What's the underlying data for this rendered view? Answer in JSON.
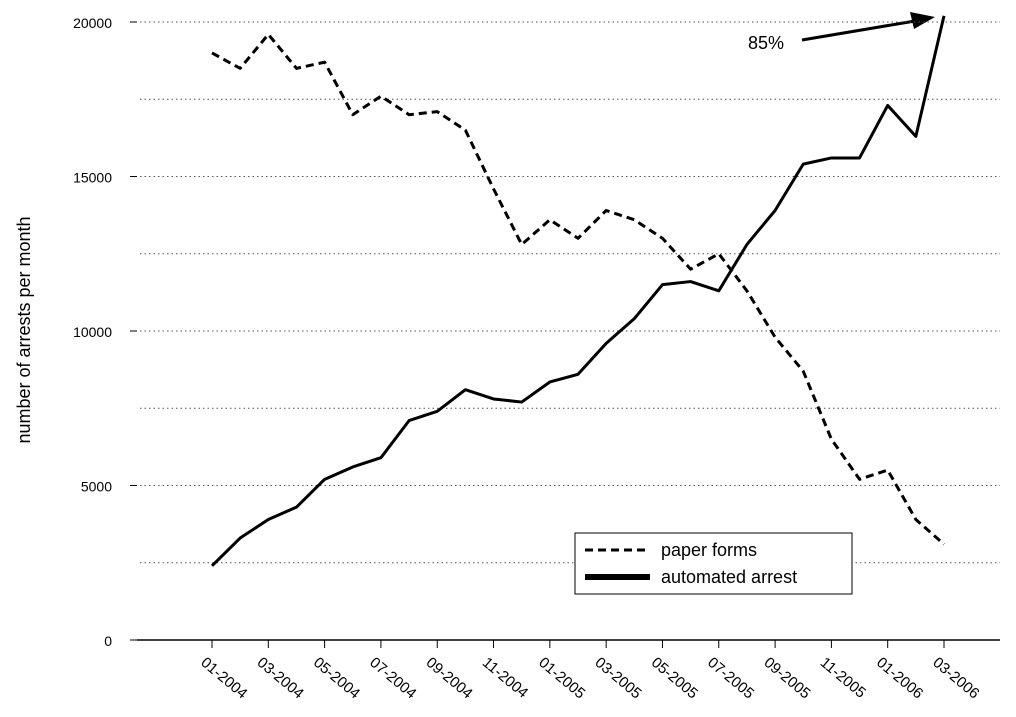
{
  "chart_data": {
    "type": "line",
    "y_label": "number of arrests per month",
    "categories": [
      "01-2004",
      null,
      "03-2004",
      null,
      "05-2004",
      null,
      "07-2004",
      null,
      "09-2004",
      null,
      "11-2004",
      null,
      "01-2005",
      null,
      "03-2005",
      null,
      "05-2005",
      null,
      "07-2005",
      null,
      "09-2005",
      null,
      "11-2005",
      null,
      "01-2006",
      null,
      "03-2006"
    ],
    "series": [
      {
        "name": "paper forms",
        "color": "#000000",
        "dash": true,
        "values": [
          19000,
          18500,
          19600,
          18500,
          18700,
          17000,
          17600,
          17000,
          17100,
          16500,
          14600,
          12800,
          13600,
          13000,
          13900,
          13600,
          13000,
          12000,
          12500,
          11300,
          9800,
          8700,
          6500,
          5200,
          5500,
          3900,
          3100
        ]
      },
      {
        "name": "automated arrest",
        "color": "#000000",
        "dash": false,
        "values": [
          2400,
          3300,
          3900,
          4300,
          5200,
          5600,
          5900,
          7100,
          7400,
          8100,
          7800,
          7700,
          8350,
          8600,
          9600,
          10400,
          11500,
          11600,
          11300,
          12800,
          13900,
          15400,
          15600,
          15600,
          17300,
          16300,
          20200
        ]
      }
    ],
    "ylim": [
      0,
      20000
    ],
    "yticks": [
      0,
      5000,
      10000,
      15000,
      20000
    ],
    "minor_yticks": [
      2500,
      7500,
      12500,
      17500
    ],
    "grid": true,
    "legend": "lower right",
    "annotation": "85%"
  }
}
